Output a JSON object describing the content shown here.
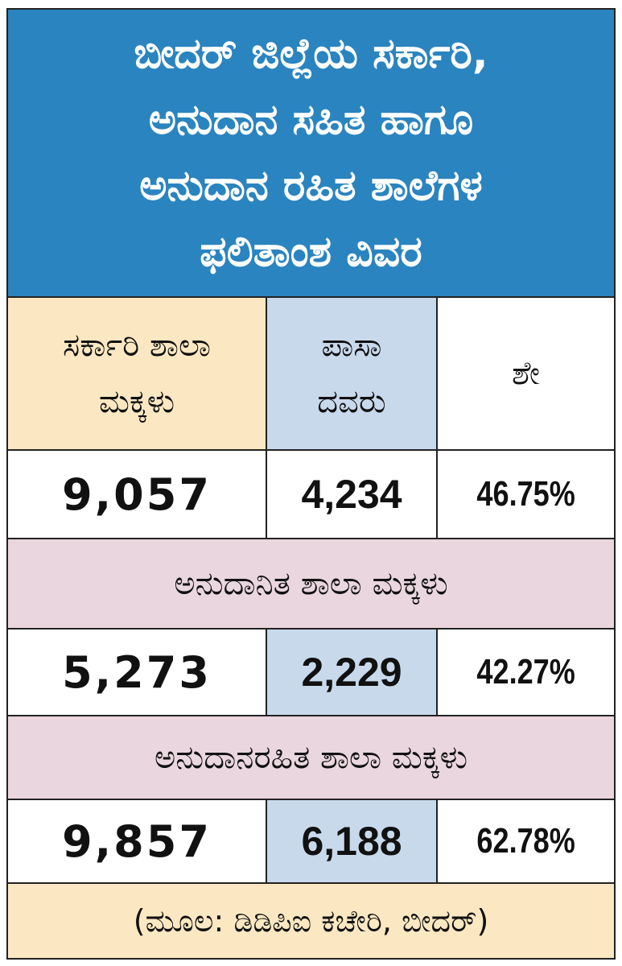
{
  "title": {
    "lines": [
      "ಬೀದರ್ ಜಿಲ್ಲೆಯ ಸರ್ಕಾರಿ,",
      "ಅನುದಾನ ಸಹಿತ ಹಾಗೂ",
      "ಅನುದಾನ ರಹಿತ ಶಾಲೆಗಳ",
      "ಫಲಿತಾಂಶ ವಿವರ"
    ]
  },
  "header": {
    "col1_line1": "ಸರ್ಕಾರಿ ಶಾಲಾ",
    "col1_line2": "ಮಕ್ಕಳು",
    "col2_line1": "ಪಾಸಾ",
    "col2_line2": "ದವರು",
    "col3": "ಶೇ"
  },
  "rows": [
    {
      "total": "9,057",
      "passed": "4,234",
      "percent": "46.75%"
    },
    {
      "total": "5,273",
      "passed": "2,229",
      "percent": "42.27%"
    },
    {
      "total": "9,857",
      "passed": "6,188",
      "percent": "62.78%"
    }
  ],
  "sections": {
    "aided": "ಅನುದಾನಿತ ಶಾಲಾ ಮಕ್ಕಳು",
    "unaided": "ಅನುದಾನರಹಿತ ಶಾಲಾ ಮಕ್ಕಳು"
  },
  "source": "(ಮೂಲ: ಡಿಡಿಪಿಐ ಕಚೇರಿ, ಬೀದರ್)",
  "colors": {
    "title_bg": "#2a84bf",
    "header_cream": "#fbe8c2",
    "header_blue": "#c9d9ec",
    "section_pink": "#ead6de"
  }
}
